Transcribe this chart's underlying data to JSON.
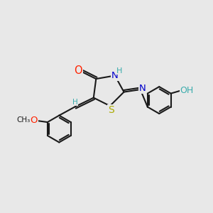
{
  "bg_color": "#e8e8e8",
  "bond_color": "#1a1a1a",
  "O_color": "#ff2200",
  "N_color": "#0000cc",
  "S_color": "#aaaa00",
  "H_color": "#3aacac",
  "font_size": 9.5,
  "line_width": 1.5,
  "fig_w": 3.0,
  "fig_h": 3.0,
  "dpi": 100,
  "xlim": [
    0,
    10
  ],
  "ylim": [
    0,
    10
  ]
}
